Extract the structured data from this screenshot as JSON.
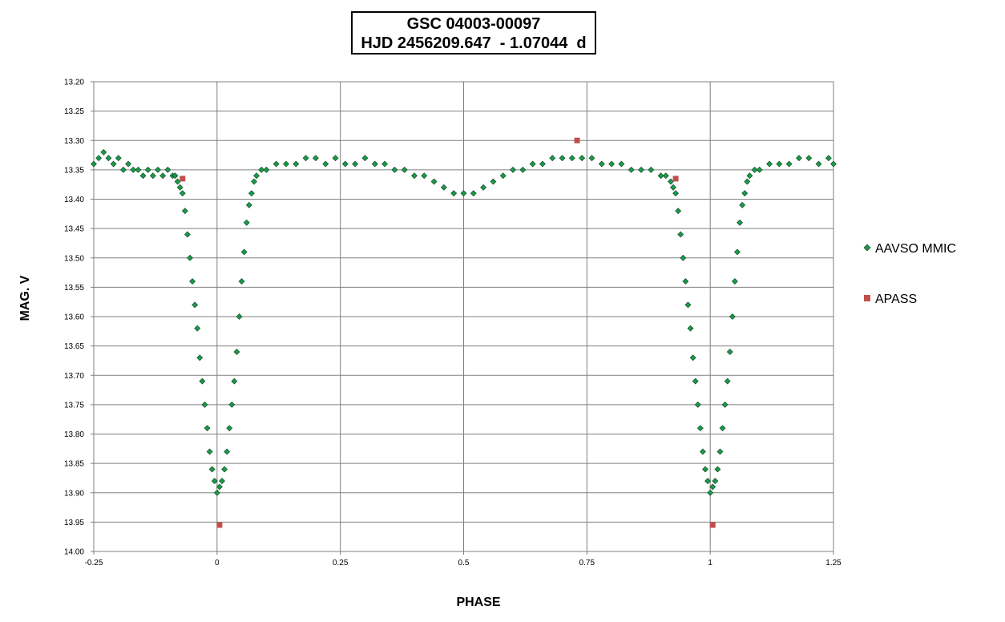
{
  "chart_data": {
    "type": "scatter",
    "title_line1": "GSC 04003-00097",
    "title_line2": "HJD 2456209.647  - 1.07044  d",
    "xlabel": "PHASE",
    "ylabel": "MAG. V",
    "xlim": [
      -0.25,
      1.25
    ],
    "ylim": [
      13.2,
      14.0
    ],
    "y_inverted": true,
    "grid": true,
    "legend_position": "right",
    "x_ticks": [
      "-0.25",
      "0",
      "0.25",
      "0.5",
      "0.75",
      "1",
      "1.25"
    ],
    "x_tick_values": [
      -0.25,
      0,
      0.25,
      0.5,
      0.75,
      1,
      1.25
    ],
    "y_ticks": [
      "13.20",
      "13.25",
      "13.30",
      "13.35",
      "13.40",
      "13.45",
      "13.50",
      "13.55",
      "13.60",
      "13.65",
      "13.70",
      "13.75",
      "13.80",
      "13.85",
      "13.90",
      "13.95",
      "14.00"
    ],
    "y_tick_values": [
      13.2,
      13.25,
      13.3,
      13.35,
      13.4,
      13.45,
      13.5,
      13.55,
      13.6,
      13.65,
      13.7,
      13.75,
      13.8,
      13.85,
      13.9,
      13.95,
      14.0
    ],
    "series": [
      {
        "name": "AAVSO MMIC",
        "color": "#1a9a4a",
        "marker": "diamond",
        "points": [
          [
            -0.25,
            13.34
          ],
          [
            -0.24,
            13.33
          ],
          [
            -0.23,
            13.32
          ],
          [
            -0.22,
            13.33
          ],
          [
            -0.21,
            13.34
          ],
          [
            -0.2,
            13.33
          ],
          [
            -0.19,
            13.35
          ],
          [
            -0.18,
            13.34
          ],
          [
            -0.17,
            13.35
          ],
          [
            -0.16,
            13.35
          ],
          [
            -0.15,
            13.36
          ],
          [
            -0.14,
            13.35
          ],
          [
            -0.13,
            13.36
          ],
          [
            -0.12,
            13.35
          ],
          [
            -0.11,
            13.36
          ],
          [
            -0.1,
            13.35
          ],
          [
            -0.09,
            13.36
          ],
          [
            -0.085,
            13.36
          ],
          [
            -0.08,
            13.37
          ],
          [
            -0.075,
            13.38
          ],
          [
            -0.07,
            13.39
          ],
          [
            -0.065,
            13.42
          ],
          [
            -0.06,
            13.46
          ],
          [
            -0.055,
            13.5
          ],
          [
            -0.05,
            13.54
          ],
          [
            -0.045,
            13.58
          ],
          [
            -0.04,
            13.62
          ],
          [
            -0.035,
            13.67
          ],
          [
            -0.03,
            13.71
          ],
          [
            -0.025,
            13.75
          ],
          [
            -0.02,
            13.79
          ],
          [
            -0.015,
            13.83
          ],
          [
            -0.01,
            13.86
          ],
          [
            -0.005,
            13.88
          ],
          [
            0.0,
            13.9
          ],
          [
            0.005,
            13.89
          ],
          [
            0.01,
            13.88
          ],
          [
            0.015,
            13.86
          ],
          [
            0.02,
            13.83
          ],
          [
            0.025,
            13.79
          ],
          [
            0.03,
            13.75
          ],
          [
            0.035,
            13.71
          ],
          [
            0.04,
            13.66
          ],
          [
            0.045,
            13.6
          ],
          [
            0.05,
            13.54
          ],
          [
            0.055,
            13.49
          ],
          [
            0.06,
            13.44
          ],
          [
            0.065,
            13.41
          ],
          [
            0.07,
            13.39
          ],
          [
            0.075,
            13.37
          ],
          [
            0.08,
            13.36
          ],
          [
            0.09,
            13.35
          ],
          [
            0.1,
            13.35
          ],
          [
            0.12,
            13.34
          ],
          [
            0.14,
            13.34
          ],
          [
            0.16,
            13.34
          ],
          [
            0.18,
            13.33
          ],
          [
            0.2,
            13.33
          ],
          [
            0.22,
            13.34
          ],
          [
            0.24,
            13.33
          ],
          [
            0.26,
            13.34
          ],
          [
            0.28,
            13.34
          ],
          [
            0.3,
            13.33
          ],
          [
            0.32,
            13.34
          ],
          [
            0.34,
            13.34
          ],
          [
            0.36,
            13.35
          ],
          [
            0.38,
            13.35
          ],
          [
            0.4,
            13.36
          ],
          [
            0.42,
            13.36
          ],
          [
            0.44,
            13.37
          ],
          [
            0.46,
            13.38
          ],
          [
            0.48,
            13.39
          ],
          [
            0.5,
            13.39
          ],
          [
            0.52,
            13.39
          ],
          [
            0.54,
            13.38
          ],
          [
            0.56,
            13.37
          ],
          [
            0.58,
            13.36
          ],
          [
            0.6,
            13.35
          ],
          [
            0.62,
            13.35
          ],
          [
            0.64,
            13.34
          ],
          [
            0.66,
            13.34
          ],
          [
            0.68,
            13.33
          ],
          [
            0.7,
            13.33
          ],
          [
            0.72,
            13.33
          ],
          [
            0.74,
            13.33
          ],
          [
            0.76,
            13.33
          ],
          [
            0.78,
            13.34
          ],
          [
            0.8,
            13.34
          ],
          [
            0.82,
            13.34
          ],
          [
            0.84,
            13.35
          ],
          [
            0.86,
            13.35
          ],
          [
            0.88,
            13.35
          ],
          [
            0.9,
            13.36
          ],
          [
            0.91,
            13.36
          ],
          [
            0.92,
            13.37
          ],
          [
            0.925,
            13.38
          ],
          [
            0.93,
            13.39
          ],
          [
            0.935,
            13.42
          ],
          [
            0.94,
            13.46
          ],
          [
            0.945,
            13.5
          ],
          [
            0.95,
            13.54
          ],
          [
            0.955,
            13.58
          ],
          [
            0.96,
            13.62
          ],
          [
            0.965,
            13.67
          ],
          [
            0.97,
            13.71
          ],
          [
            0.975,
            13.75
          ],
          [
            0.98,
            13.79
          ],
          [
            0.985,
            13.83
          ],
          [
            0.99,
            13.86
          ],
          [
            0.995,
            13.88
          ],
          [
            1.0,
            13.9
          ],
          [
            1.005,
            13.89
          ],
          [
            1.01,
            13.88
          ],
          [
            1.015,
            13.86
          ],
          [
            1.02,
            13.83
          ],
          [
            1.025,
            13.79
          ],
          [
            1.03,
            13.75
          ],
          [
            1.035,
            13.71
          ],
          [
            1.04,
            13.66
          ],
          [
            1.045,
            13.6
          ],
          [
            1.05,
            13.54
          ],
          [
            1.055,
            13.49
          ],
          [
            1.06,
            13.44
          ],
          [
            1.065,
            13.41
          ],
          [
            1.07,
            13.39
          ],
          [
            1.075,
            13.37
          ],
          [
            1.08,
            13.36
          ],
          [
            1.09,
            13.35
          ],
          [
            1.1,
            13.35
          ],
          [
            1.12,
            13.34
          ],
          [
            1.14,
            13.34
          ],
          [
            1.16,
            13.34
          ],
          [
            1.18,
            13.33
          ],
          [
            1.2,
            13.33
          ],
          [
            1.22,
            13.34
          ],
          [
            1.24,
            13.33
          ],
          [
            1.25,
            13.34
          ]
        ]
      },
      {
        "name": "APASS",
        "color": "#c0504d",
        "marker": "square",
        "points": [
          [
            -0.07,
            13.365
          ],
          [
            0.005,
            13.955
          ],
          [
            0.73,
            13.3
          ],
          [
            0.93,
            13.365
          ],
          [
            1.005,
            13.955
          ]
        ]
      }
    ]
  }
}
